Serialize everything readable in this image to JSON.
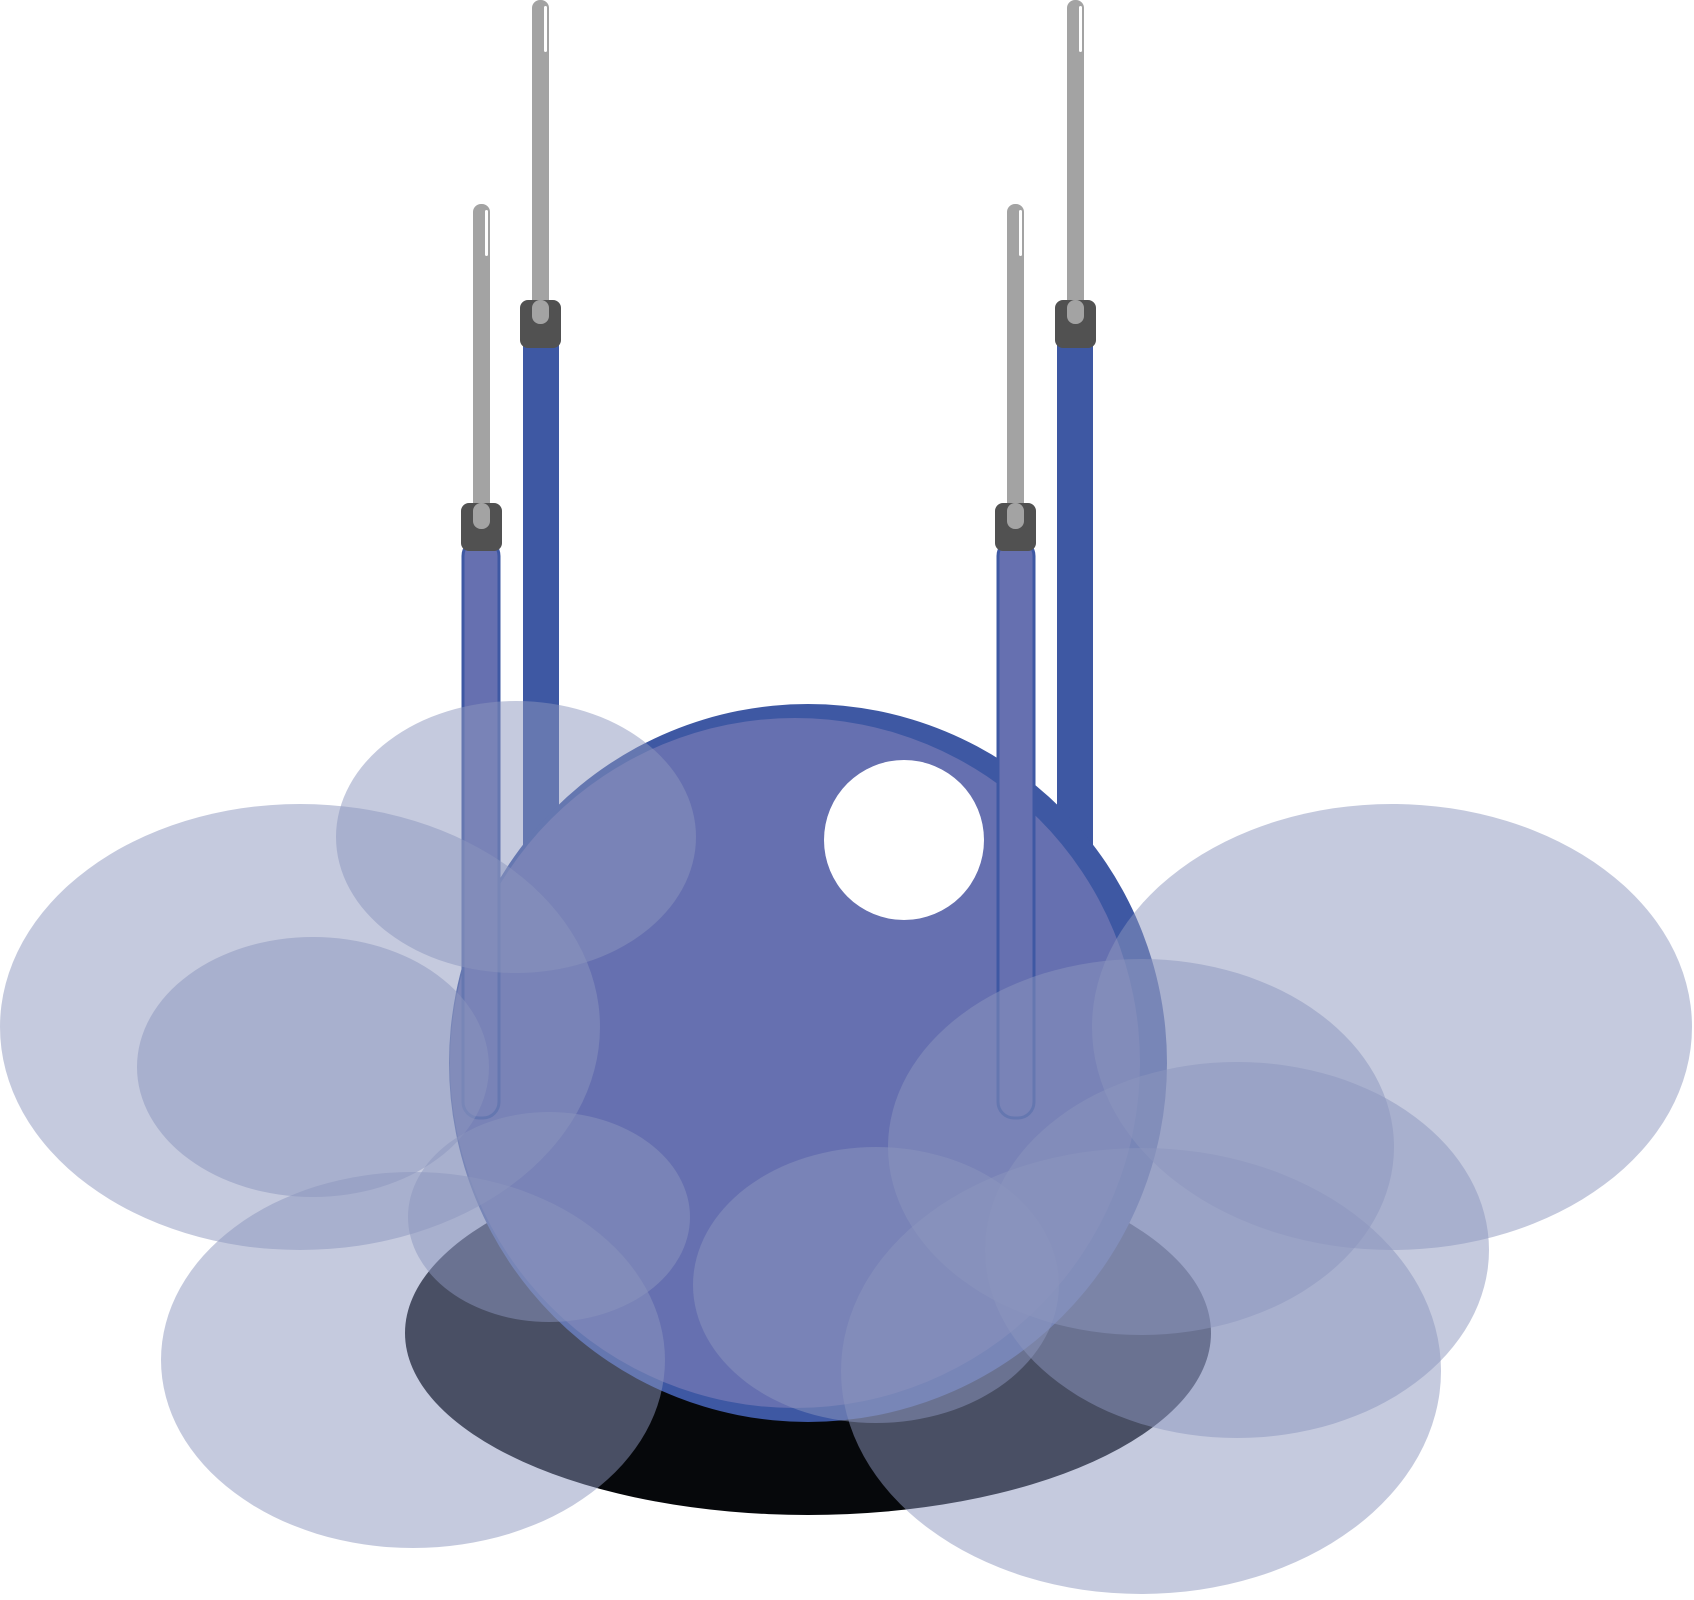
{
  "scene": {
    "name": "drone-in-cloud-illustration",
    "colors": {
      "background": "#ffffff",
      "body_light": "#6670b0",
      "body_dark": "#3e58a3",
      "shadow": "#06080b",
      "port": "#ffffff",
      "clamp": "#515151",
      "antenna": "#a3a3a3",
      "antenna_highlight": "#ffffff",
      "cloud": "#8b96bd"
    },
    "cloud_opacity": 0.5,
    "icons": {
      "body": "sphere-icon",
      "port": "circle-port-icon",
      "antenna": "antenna-icon",
      "cloud": "cloud-puff-icon"
    }
  }
}
